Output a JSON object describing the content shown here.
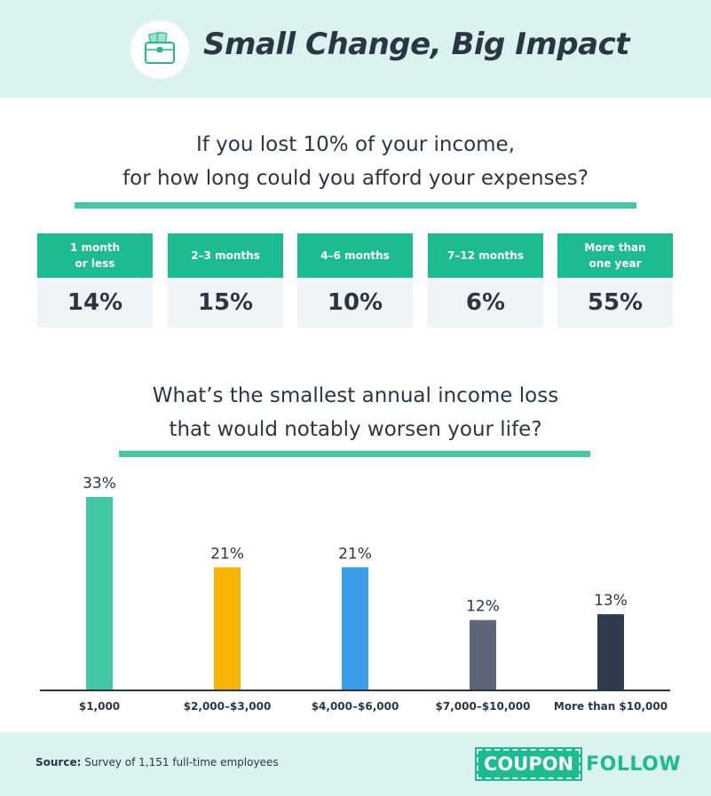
{
  "header": {
    "title": "Small Change, Big Impact",
    "icon": "briefcase-money-icon"
  },
  "section1": {
    "question_line1": "If you lost 10% of your income,",
    "question_line2": "for how long could you afford your expenses?",
    "cards": [
      {
        "label_line1": "1 month",
        "label_line2": "or less",
        "value": "14%"
      },
      {
        "label_line1": "2–3 months",
        "label_line2": "",
        "value": "15%"
      },
      {
        "label_line1": "4–6 months",
        "label_line2": "",
        "value": "10%"
      },
      {
        "label_line1": "7–12 months",
        "label_line2": "",
        "value": "6%"
      },
      {
        "label_line1": "More than",
        "label_line2": "one year",
        "value": "55%"
      }
    ]
  },
  "section2": {
    "question_line1": "What’s the smallest annual income loss",
    "question_line2": "that would notably worsen your life?"
  },
  "chart_data": {
    "type": "bar",
    "title": "What’s the smallest annual income loss that would notably worsen your life?",
    "categories": [
      "$1,000",
      "$2,000–$3,000",
      "$4,000–$6,000",
      "$7,000–$10,000",
      "More than $10,000"
    ],
    "values": [
      33,
      21,
      21,
      12,
      13
    ],
    "value_labels": [
      "33%",
      "21%",
      "21%",
      "12%",
      "13%"
    ],
    "colors": [
      "#42c7a7",
      "#f6b400",
      "#3a9be6",
      "#5c6677",
      "#2f3a4c"
    ],
    "ylim": [
      0,
      33
    ],
    "grid": false,
    "legend": "none"
  },
  "footer": {
    "source_label": "Source:",
    "source_text": " Survey of 1,151 full-time employees",
    "brand_box": "COUPON",
    "brand_text": "FOLLOW"
  }
}
